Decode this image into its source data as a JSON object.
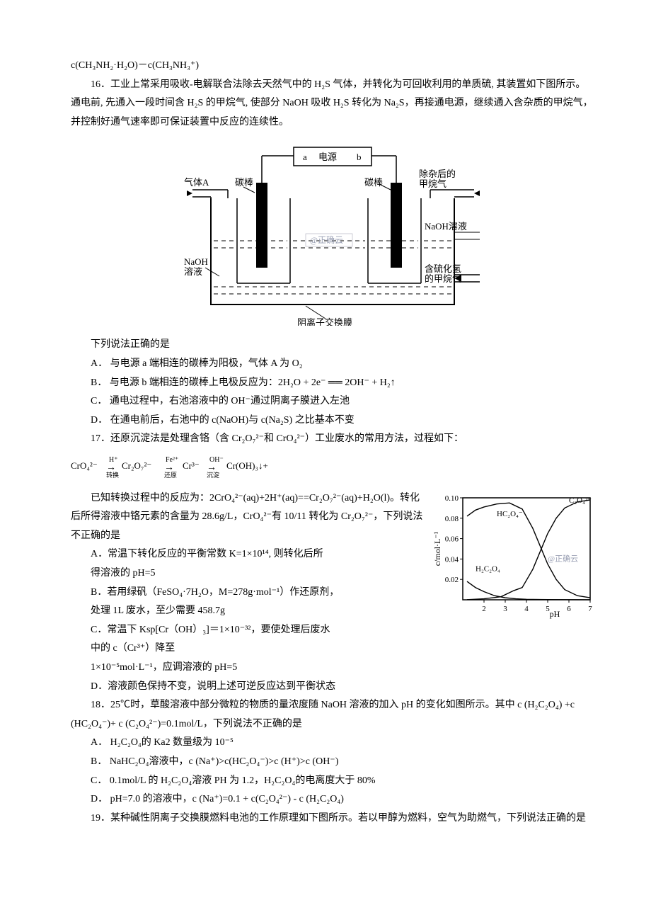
{
  "top_fragment": "c(CH₃NH₂·H₂O)－c(CH₃NH₃⁺)",
  "q16": {
    "stem1": "16．工业上常采用吸收-电解联合法除去天然气中的 H₂S 气体，并转化为可回收利用的单质硫, 其装置如下图所示。通电前, 先通入一段时间含 H₂S 的甲烷气, 使部分 NaOH 吸收 H₂S 转化为 Na₂S，再接通电源，继续通入含杂质的甲烷气，并控制好通气速率即可保证装置中反应的连续性。",
    "stem2": "下列说法正确的是",
    "optA": "A．  与电源 a 端相连的碳棒为阳极，气体 A 为 O₂",
    "optB": "B．  与电源 b 端相连的碳棒上电极反应为：2H₂O + 2e⁻ ══ 2OH⁻ + H₂↑",
    "optC": "C．  通电过程中，右池溶液中的 OH⁻通过阴离子膜进入左池",
    "optD": "D．  在通电前后，右池中的 c(NaOH)与 c(Na₂S) 之比基本不变",
    "diagram": {
      "labels": {
        "power_a": "a",
        "power_b": "b",
        "power": "电源",
        "rod": "碳棒",
        "gasA": "气体A",
        "pureGas_l1": "除杂后的",
        "pureGas_l2": "甲烷气",
        "naoh_left_l1": "NaOH",
        "naoh_left_l2": "溶液",
        "naoh_right": "NaOH溶液",
        "watermark": "@正确云",
        "feed_l1": "含硫化氢",
        "feed_l2": "的甲烷气",
        "membrane": "阴离子交换膜"
      },
      "colors": {
        "stroke": "#000000",
        "liquid_line": "#000000",
        "watermark": "#9aa0b4"
      }
    }
  },
  "q17": {
    "stem1": "17．还原沉淀法是处理含铬（含 Cr₂O₇²⁻和 CrO₄²⁻）工业废水的常用方法，过程如下：",
    "formula": "CrO₄²⁻  →(H⁺, 转换)  Cr₂O₇²⁻  →(Fe²⁺, 还原)  Cr³⁻  →(OH⁻, 沉淀)  Cr(OH)₃↓+",
    "stem2": "已知转换过程中的反应为：2CrO₄²⁻(aq)+2H⁺(aq)==Cr₂O₇²⁻(aq)+H₂O(l)。转化后所得溶液中铬元素的含量为 28.6g/L，CrO₄²⁻有 10/11 转化为 Cr₂O₇²⁻，下列说法不正确的是",
    "optA_l1": "A．常温下转化反应的平衡常数 K=1×10¹⁴, 则转化后所",
    "optA_l2": "得溶液的 pH=5",
    "optB_l1": "B．若用绿矾（FeSO₄·7H₂O，M=278g·mol⁻¹）作还原剂，",
    "optB_l2": "处理 1L 废水，至少需要 458.7g",
    "optC_l1": "C．常温下 Ksp[Cr（OH）₃]＝1×10⁻³²，要使处理后废水",
    "optC_l2": "中的 c（Cr³⁺）降至",
    "optC_l3": "1×10⁻⁵mol·L⁻¹，应调溶液的 pH=5",
    "optD": "D．溶液颜色保持不变，说明上述可逆反应达到平衡状态"
  },
  "q18": {
    "stem": "18．25℃时，草酸溶液中部分微粒的物质的量浓度随 NaOH 溶液的加入 pH 的变化如图所示。其中 c (H₂C₂O₄) +c (HC₂O₄⁻)+ c (C₂O₄²⁻)=0.1mol/L，下列说法不正确的是",
    "optA": "A．  H₂C₂O₄的 Ka2 数量级为 10⁻⁵",
    "optB": "B．  NaHC₂O₄溶液中，c (Na⁺)>c(HC₂O₄⁻)>c (H⁺)>c (OH⁻)",
    "optC": "C．  0.1mol/L 的 H₂C₂O₄溶液 PH 为 1.2，H₂C₂O₄的电离度大于 80%",
    "optD": "D．  pH=7.0 的溶液中，c (Na⁺)=0.1 + c(C₂O₄²⁻) - c (H₂C₂O₄)",
    "chart": {
      "xlabel": "pH",
      "ylabel": "c/mol·L⁻¹",
      "xlim": [
        1,
        7
      ],
      "xtick": [
        2,
        3,
        4,
        5,
        6,
        7
      ],
      "ylim": [
        0,
        0.1
      ],
      "ytick": [
        0.02,
        0.04,
        0.06,
        0.08,
        0.1
      ],
      "line_color": "#000000",
      "watermark": "@正确云",
      "watermark_color": "#9aa0b4",
      "series": {
        "H2C2O4": {
          "label": "H₂C₂O₄",
          "points": [
            [
              1.2,
              0.018
            ],
            [
              1.6,
              0.012
            ],
            [
              2.0,
              0.008
            ],
            [
              2.5,
              0.004
            ],
            [
              3.0,
              0.002
            ],
            [
              3.5,
              0.001
            ],
            [
              4.0,
              0.0005
            ],
            [
              5,
              0.0002
            ],
            [
              6,
              0.0001
            ],
            [
              7,
              5e-05
            ]
          ]
        },
        "HC2O4": {
          "label": "HC₂O₄⁻",
          "points": [
            [
              1.2,
              0.082
            ],
            [
              1.6,
              0.088
            ],
            [
              2.0,
              0.091
            ],
            [
              2.6,
              0.094
            ],
            [
              3.2,
              0.095
            ],
            [
              3.8,
              0.089
            ],
            [
              4.3,
              0.07
            ],
            [
              4.6,
              0.055
            ],
            [
              5.0,
              0.035
            ],
            [
              5.4,
              0.02
            ],
            [
              5.8,
              0.01
            ],
            [
              6.4,
              0.004
            ],
            [
              7.0,
              0.002
            ]
          ]
        },
        "C2O4": {
          "label": "C₂O₄²⁻",
          "points": [
            [
              1.2,
              0.0001
            ],
            [
              2.0,
              0.001
            ],
            [
              2.8,
              0.003
            ],
            [
              3.4,
              0.009
            ],
            [
              3.8,
              0.012
            ],
            [
              4.3,
              0.03
            ],
            [
              4.6,
              0.045
            ],
            [
              5.0,
              0.065
            ],
            [
              5.4,
              0.08
            ],
            [
              5.8,
              0.09
            ],
            [
              6.4,
              0.096
            ],
            [
              7.0,
              0.098
            ]
          ]
        }
      }
    }
  },
  "q19": {
    "stem": "19．某种碱性阴离子交换膜燃料电池的工作原理如下图所示。若以甲醇为燃料，空气为助燃气，下列说法正确的是"
  }
}
